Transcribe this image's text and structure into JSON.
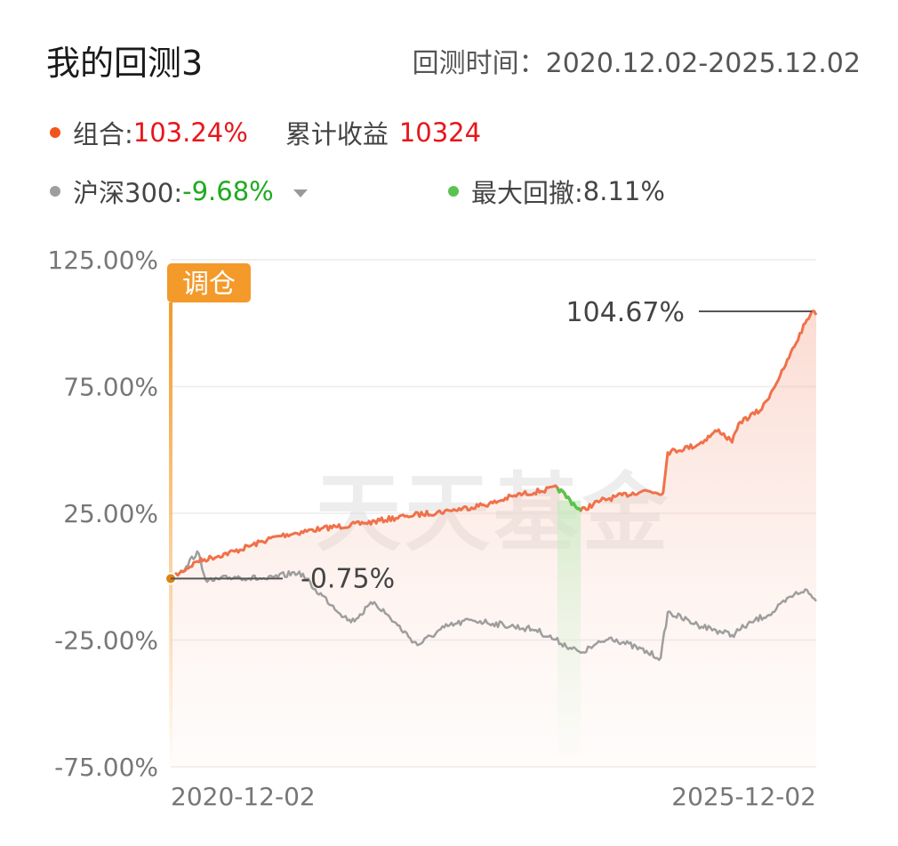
{
  "header": {
    "title": "我的回测3",
    "period_label": "回测时间：",
    "period_value": "2020.12.02-2025.12.02"
  },
  "stats": {
    "portfolio_label": "组合:",
    "portfolio_return": "103.24%",
    "cumulative_label": "累计收益",
    "cumulative_value": "10324",
    "benchmark_label": "沪深300:",
    "benchmark_return": "-9.68%",
    "drawdown_label": "最大回撤:",
    "drawdown_value": "8.11%"
  },
  "colors": {
    "portfolio": "#f0714a",
    "portfolio_dot": "#f2541d",
    "benchmark": "#9e9e9e",
    "drawdown": "#5ac34f",
    "rebalance": "#f39a2b",
    "positive": "#e8151b",
    "negative": "#1faa1f"
  },
  "chart_data": {
    "type": "line",
    "x_range": [
      "2020-12-02",
      "2025-12-02"
    ],
    "x_tick_labels": [
      "2020-12-02",
      "2025-12-02"
    ],
    "ylim": [
      -75,
      125
    ],
    "y_ticks": [
      125,
      75,
      25,
      -25,
      -75
    ],
    "y_tick_labels": [
      "125.00%",
      "75.00%",
      "25.00%",
      "-25.00%",
      "-75.00%"
    ],
    "grid": true,
    "series": [
      {
        "key": "portfolio",
        "x": [
          "2020-12-02",
          "2021-02-15",
          "2021-06-01",
          "2021-10-01",
          "2022-02-01",
          "2022-06-01",
          "2022-10-01",
          "2023-02-01",
          "2023-06-01",
          "2023-08-01",
          "2023-12-01",
          "2024-02-05",
          "2024-04-01",
          "2024-08-01",
          "2024-09-25",
          "2024-10-08",
          "2025-01-01",
          "2025-03-01",
          "2025-04-08",
          "2025-05-01",
          "2025-07-01",
          "2025-09-01",
          "2025-11-01",
          "2025-11-20",
          "2025-12-02"
        ],
        "values": [
          -0.75,
          6,
          10,
          16,
          19,
          21,
          24,
          26,
          29,
          32,
          35,
          26,
          30,
          34,
          33,
          49,
          52,
          58,
          53,
          61,
          66,
          82,
          100,
          104.67,
          103.24
        ]
      },
      {
        "key": "benchmark",
        "x": [
          "2020-12-02",
          "2021-01-15",
          "2021-02-15",
          "2021-03-15",
          "2021-06-01",
          "2021-09-01",
          "2021-12-01",
          "2022-01-15",
          "2022-04-26",
          "2022-07-01",
          "2022-10-31",
          "2023-01-15",
          "2023-04-01",
          "2023-07-01",
          "2023-10-01",
          "2024-02-05",
          "2024-05-01",
          "2024-09-18",
          "2024-10-08",
          "2025-01-01",
          "2025-04-08",
          "2025-06-01",
          "2025-08-01",
          "2025-10-01",
          "2025-11-01",
          "2025-12-02"
        ],
        "values": [
          -0.75,
          4,
          10,
          -2,
          0,
          -1,
          2,
          -5,
          -18,
          -10,
          -27,
          -20,
          -17,
          -19,
          -21,
          -30,
          -24,
          -32,
          -14,
          -19,
          -23,
          -18,
          -14,
          -7,
          -5,
          -9.68
        ]
      }
    ],
    "drawdown_period": {
      "start": "2023-12-01",
      "end": "2024-02-05",
      "max_drawdown": "8.11%"
    },
    "rebalance_marker": {
      "date": "2020-12-02",
      "label": "调仓"
    },
    "annotations": [
      {
        "date": "2020-12-02",
        "value": -0.75,
        "label": "-0.75%"
      },
      {
        "date": "2025-11-20",
        "value": 104.67,
        "label": "104.67%"
      }
    ],
    "watermark": "天天基金"
  }
}
